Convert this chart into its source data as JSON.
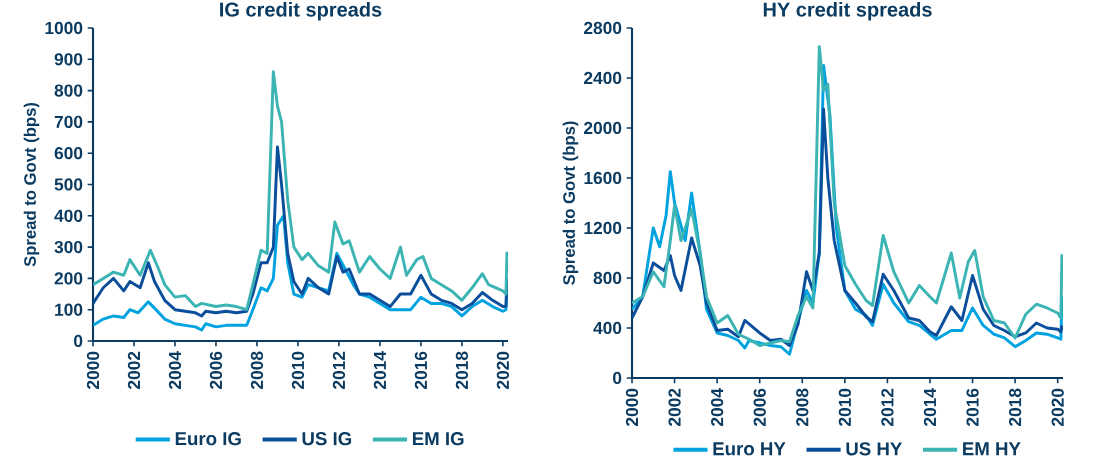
{
  "chart_data": [
    {
      "type": "line",
      "title": "IG credit spreads",
      "ylabel": "Spread to Govt (bps)",
      "xlim": [
        2000,
        2020.25
      ],
      "xticks": [
        2000,
        2002,
        2004,
        2006,
        2008,
        2010,
        2012,
        2014,
        2016,
        2018,
        2020
      ],
      "ylim": [
        0,
        1000
      ],
      "yticks": [
        0,
        100,
        200,
        300,
        400,
        500,
        600,
        700,
        800,
        900,
        1000
      ],
      "legend": "bottom",
      "marker": "none",
      "line_style": "solid",
      "series": [
        {
          "name": "Euro IG",
          "color": "#00a3e0",
          "x": [
            2000,
            2000.5,
            2001,
            2001.5,
            2001.8,
            2002.2,
            2002.7,
            2003,
            2003.5,
            2004,
            2004.5,
            2005,
            2005.3,
            2005.5,
            2006,
            2006.5,
            2007,
            2007.5,
            2007.8,
            2008.2,
            2008.5,
            2008.8,
            2009,
            2009.3,
            2009.5,
            2009.8,
            2010.2,
            2010.5,
            2011,
            2011.5,
            2011.9,
            2012.3,
            2012.7,
            2013,
            2013.5,
            2014,
            2014.5,
            2015,
            2015.5,
            2016,
            2016.5,
            2017,
            2017.5,
            2018,
            2018.5,
            2019,
            2019.5,
            2020,
            2020.15,
            2020.2
          ],
          "values": [
            50,
            70,
            80,
            75,
            100,
            90,
            125,
            105,
            70,
            55,
            50,
            45,
            35,
            55,
            45,
            50,
            50,
            50,
            100,
            170,
            160,
            200,
            370,
            400,
            250,
            150,
            140,
            180,
            170,
            160,
            280,
            230,
            180,
            150,
            140,
            120,
            100,
            100,
            100,
            140,
            120,
            120,
            110,
            80,
            110,
            130,
            110,
            95,
            100,
            180
          ]
        },
        {
          "name": "US IG",
          "color": "#0b4f9c",
          "x": [
            2000,
            2000.5,
            2001,
            2001.5,
            2001.8,
            2002.3,
            2002.7,
            2003,
            2003.5,
            2004,
            2004.5,
            2005,
            2005.3,
            2005.5,
            2006,
            2006.5,
            2007,
            2007.5,
            2007.8,
            2008.2,
            2008.5,
            2008.8,
            2009,
            2009.2,
            2009.5,
            2009.8,
            2010.2,
            2010.5,
            2011,
            2011.5,
            2011.9,
            2012.2,
            2012.5,
            2013,
            2013.5,
            2014,
            2014.5,
            2015,
            2015.5,
            2016,
            2016.5,
            2017,
            2017.5,
            2018,
            2018.5,
            2019,
            2019.5,
            2020,
            2020.15,
            2020.2
          ],
          "values": [
            120,
            170,
            200,
            160,
            190,
            170,
            250,
            190,
            130,
            100,
            95,
            90,
            80,
            95,
            90,
            95,
            90,
            95,
            150,
            250,
            250,
            300,
            620,
            500,
            280,
            190,
            150,
            200,
            170,
            150,
            270,
            220,
            230,
            150,
            150,
            130,
            110,
            150,
            150,
            210,
            150,
            130,
            120,
            100,
            120,
            155,
            130,
            110,
            110,
            200
          ]
        },
        {
          "name": "EM IG",
          "color": "#3cb4b4",
          "x": [
            2000,
            2000.5,
            2001,
            2001.5,
            2001.8,
            2002.3,
            2002.8,
            2003.2,
            2003.5,
            2004,
            2004.5,
            2005,
            2005.3,
            2006,
            2006.5,
            2007,
            2007.5,
            2007.8,
            2008.2,
            2008.5,
            2008.8,
            2009,
            2009.2,
            2009.5,
            2009.8,
            2010.2,
            2010.5,
            2011,
            2011.5,
            2011.8,
            2012.2,
            2012.5,
            2013,
            2013.5,
            2014,
            2014.5,
            2015,
            2015.3,
            2015.8,
            2016.1,
            2016.5,
            2017,
            2017.5,
            2018,
            2018.5,
            2019,
            2019.3,
            2020,
            2020.15,
            2020.2
          ],
          "values": [
            180,
            200,
            220,
            210,
            260,
            210,
            290,
            230,
            180,
            140,
            145,
            110,
            120,
            110,
            115,
            110,
            100,
            180,
            290,
            280,
            860,
            750,
            700,
            450,
            300,
            260,
            280,
            240,
            220,
            380,
            310,
            320,
            220,
            270,
            230,
            200,
            300,
            210,
            260,
            270,
            200,
            180,
            160,
            130,
            170,
            215,
            180,
            160,
            150,
            285
          ]
        }
      ]
    },
    {
      "type": "line",
      "title": "HY credit spreads",
      "ylabel": "Spread to Govt (bps)",
      "xlim": [
        2000,
        2020.25
      ],
      "xticks": [
        2000,
        2002,
        2004,
        2006,
        2008,
        2010,
        2012,
        2014,
        2016,
        2018,
        2020
      ],
      "ylim": [
        0,
        2800
      ],
      "yticks": [
        0,
        400,
        800,
        1200,
        1600,
        2000,
        2400,
        2800
      ],
      "legend": "bottom",
      "marker": "none",
      "line_style": "solid",
      "series": [
        {
          "name": "Euro HY",
          "color": "#00a3e0",
          "x": [
            2000,
            2000.5,
            2001,
            2001.3,
            2001.6,
            2001.8,
            2002,
            2002.5,
            2002.8,
            2003.2,
            2003.5,
            2004,
            2004.5,
            2005,
            2005.3,
            2005.5,
            2006,
            2006.5,
            2007,
            2007.4,
            2007.8,
            2008.2,
            2008.5,
            2008.8,
            2009,
            2009.3,
            2009.6,
            2010,
            2010.5,
            2011,
            2011.3,
            2011.8,
            2012.3,
            2013,
            2013.5,
            2014,
            2014.3,
            2015,
            2015.5,
            2016,
            2016.5,
            2017,
            2017.5,
            2018,
            2018.5,
            2019,
            2019.5,
            2020,
            2020.15,
            2020.2
          ],
          "values": [
            550,
            650,
            1200,
            1050,
            1300,
            1650,
            1400,
            1100,
            1480,
            1000,
            550,
            360,
            340,
            300,
            240,
            300,
            280,
            260,
            250,
            190,
            450,
            700,
            600,
            1000,
            2500,
            2100,
            1200,
            700,
            550,
            500,
            420,
            750,
            600,
            450,
            420,
            350,
            310,
            380,
            380,
            560,
            420,
            350,
            320,
            250,
            300,
            360,
            350,
            320,
            310,
            650
          ]
        },
        {
          "name": "US HY",
          "color": "#0b4f9c",
          "x": [
            2000,
            2000.5,
            2001,
            2001.5,
            2001.8,
            2002,
            2002.3,
            2002.8,
            2003.2,
            2003.5,
            2004,
            2004.5,
            2005,
            2005.3,
            2006,
            2006.5,
            2007,
            2007.4,
            2007.8,
            2008.2,
            2008.5,
            2008.8,
            2009,
            2009.2,
            2009.5,
            2010,
            2010.5,
            2011,
            2011.3,
            2011.8,
            2012.3,
            2013,
            2013.5,
            2014,
            2014.3,
            2015,
            2015.5,
            2016,
            2016.5,
            2017,
            2017.5,
            2018,
            2018.5,
            2019,
            2019.5,
            2020,
            2020.15,
            2020.2
          ],
          "values": [
            480,
            650,
            920,
            860,
            980,
            820,
            700,
            1120,
            900,
            600,
            380,
            390,
            330,
            460,
            360,
            300,
            310,
            260,
            430,
            850,
            700,
            1000,
            2150,
            1600,
            1100,
            700,
            600,
            490,
            450,
            830,
            700,
            480,
            460,
            370,
            340,
            570,
            460,
            820,
            550,
            420,
            380,
            330,
            360,
            440,
            400,
            390,
            370,
            420
          ]
        },
        {
          "name": "EM HY",
          "color": "#3cb4b4",
          "x": [
            2000,
            2000.5,
            2001,
            2001.5,
            2001.8,
            2002,
            2002.3,
            2002.8,
            2003.2,
            2003.5,
            2004,
            2004.5,
            2005,
            2005.5,
            2006,
            2006.5,
            2007,
            2007.4,
            2007.8,
            2008.2,
            2008.5,
            2008.8,
            2009,
            2009.2,
            2009.5,
            2010,
            2010.5,
            2011,
            2011.3,
            2011.8,
            2012.3,
            2013,
            2013.5,
            2014,
            2014.3,
            2015,
            2015.4,
            2015.8,
            2016.1,
            2016.5,
            2017,
            2017.5,
            2018,
            2018.5,
            2019,
            2019.5,
            2020,
            2020.15,
            2020.2
          ],
          "values": [
            600,
            650,
            850,
            730,
            1100,
            1380,
            1100,
            1350,
            1000,
            650,
            440,
            500,
            350,
            310,
            260,
            280,
            300,
            290,
            500,
            650,
            560,
            2650,
            2300,
            2350,
            1400,
            900,
            750,
            620,
            580,
            1140,
            850,
            600,
            740,
            650,
            600,
            1000,
            640,
            930,
            1020,
            650,
            460,
            440,
            320,
            510,
            590,
            560,
            520,
            480,
            990
          ]
        }
      ]
    }
  ]
}
